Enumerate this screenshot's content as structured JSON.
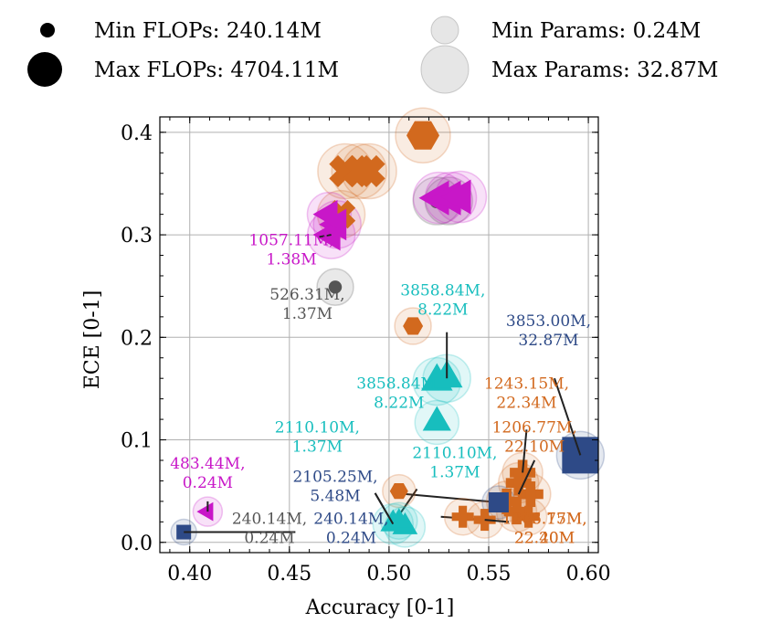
{
  "chart_data": {
    "type": "scatter",
    "title": "",
    "xlabel": "Accuracy [0-1]",
    "ylabel": "ECE [0-1]",
    "xlim": [
      0.385,
      0.605
    ],
    "ylim": [
      -0.01,
      0.415
    ],
    "xticks": [
      0.4,
      0.45,
      0.5,
      0.55,
      0.6
    ],
    "xtick_labels": [
      "0.40",
      "0.45",
      "0.50",
      "0.55",
      "0.60"
    ],
    "yticks": [
      0.0,
      0.1,
      0.2,
      0.3,
      0.4
    ],
    "ytick_labels": [
      "0.0",
      "0.1",
      "0.2",
      "0.3",
      "0.4"
    ],
    "grid": true,
    "legend": {
      "flops_min": "Min FLOPs: 240.14M",
      "flops_max": "Max FLOPs: 4704.11M",
      "params_min": "Min Params: 0.24M",
      "params_max": "Max Params: 32.87M"
    },
    "colors": {
      "orange": "#d2691e",
      "magenta": "#c817c8",
      "teal": "#17bebe",
      "navy": "#2e4a87",
      "gray": "#555555"
    },
    "points": [
      {
        "x": 0.517,
        "y": 0.397,
        "shape": "hexagon",
        "color": "orange",
        "size": 18,
        "halo": 30
      },
      {
        "x": 0.478,
        "y": 0.362,
        "shape": "x",
        "color": "orange",
        "size": 18,
        "halo": 30
      },
      {
        "x": 0.485,
        "y": 0.362,
        "shape": "x",
        "color": "orange",
        "size": 18,
        "halo": 30
      },
      {
        "x": 0.49,
        "y": 0.362,
        "shape": "x",
        "color": "orange",
        "size": 18,
        "halo": 30
      },
      {
        "x": 0.476,
        "y": 0.32,
        "shape": "x",
        "color": "orange",
        "size": 16,
        "halo": 26
      },
      {
        "x": 0.474,
        "y": 0.31,
        "shape": "tri-left",
        "color": "magenta",
        "size": 20,
        "halo": 26
      },
      {
        "x": 0.471,
        "y": 0.3,
        "shape": "tri-left",
        "color": "magenta",
        "size": 20,
        "halo": 26
      },
      {
        "x": 0.47,
        "y": 0.32,
        "shape": "tri-left",
        "color": "magenta",
        "size": 18,
        "halo": 24
      },
      {
        "x": 0.524,
        "y": 0.333,
        "shape": "circle",
        "color": "gray",
        "size": 10,
        "halo": 26
      },
      {
        "x": 0.53,
        "y": 0.333,
        "shape": "circle",
        "color": "gray",
        "size": 10,
        "halo": 26
      },
      {
        "x": 0.525,
        "y": 0.336,
        "shape": "tri-left",
        "color": "magenta",
        "size": 22,
        "halo": 28
      },
      {
        "x": 0.531,
        "y": 0.336,
        "shape": "tri-left",
        "color": "magenta",
        "size": 22,
        "halo": 28
      },
      {
        "x": 0.536,
        "y": 0.337,
        "shape": "tri-left",
        "color": "magenta",
        "size": 22,
        "halo": 28
      },
      {
        "x": 0.473,
        "y": 0.249,
        "shape": "circle",
        "color": "gray",
        "size": 9,
        "halo": 20
      },
      {
        "x": 0.512,
        "y": 0.211,
        "shape": "hexagon",
        "color": "orange",
        "size": 11,
        "halo": 20
      },
      {
        "x": 0.524,
        "y": 0.157,
        "shape": "triangle",
        "color": "teal",
        "size": 20,
        "halo": 26
      },
      {
        "x": 0.529,
        "y": 0.16,
        "shape": "triangle",
        "color": "teal",
        "size": 20,
        "halo": 26
      },
      {
        "x": 0.524,
        "y": 0.117,
        "shape": "triangle",
        "color": "teal",
        "size": 18,
        "halo": 24
      },
      {
        "x": 0.596,
        "y": 0.085,
        "shape": "square",
        "color": "navy",
        "size": 20,
        "halo": 26
      },
      {
        "x": 0.567,
        "y": 0.068,
        "shape": "plus",
        "color": "orange",
        "size": 14,
        "halo": 22
      },
      {
        "x": 0.565,
        "y": 0.058,
        "shape": "plus",
        "color": "orange",
        "size": 14,
        "halo": 22
      },
      {
        "x": 0.571,
        "y": 0.047,
        "shape": "plus",
        "color": "orange",
        "size": 14,
        "halo": 22
      },
      {
        "x": 0.559,
        "y": 0.04,
        "shape": "plus",
        "color": "orange",
        "size": 14,
        "halo": 22
      },
      {
        "x": 0.564,
        "y": 0.03,
        "shape": "plus",
        "color": "orange",
        "size": 14,
        "halo": 22
      },
      {
        "x": 0.57,
        "y": 0.025,
        "shape": "plus",
        "color": "orange",
        "size": 12,
        "halo": 20
      },
      {
        "x": 0.537,
        "y": 0.025,
        "shape": "plus",
        "color": "orange",
        "size": 12,
        "halo": 20
      },
      {
        "x": 0.548,
        "y": 0.022,
        "shape": "plus",
        "color": "orange",
        "size": 12,
        "halo": 20
      },
      {
        "x": 0.555,
        "y": 0.039,
        "shape": "square",
        "color": "navy",
        "size": 11,
        "halo": 18
      },
      {
        "x": 0.505,
        "y": 0.05,
        "shape": "hexagon",
        "color": "orange",
        "size": 10,
        "halo": 18
      },
      {
        "x": 0.502,
        "y": 0.018,
        "shape": "triangle",
        "color": "teal",
        "size": 16,
        "halo": 22
      },
      {
        "x": 0.508,
        "y": 0.015,
        "shape": "triangle",
        "color": "teal",
        "size": 16,
        "halo": 22
      },
      {
        "x": 0.505,
        "y": 0.021,
        "shape": "triangle",
        "color": "teal",
        "size": 14,
        "halo": 20
      },
      {
        "x": 0.409,
        "y": 0.03,
        "shape": "tri-left",
        "color": "magenta",
        "size": 12,
        "halo": 16
      },
      {
        "x": 0.397,
        "y": 0.01,
        "shape": "square",
        "color": "navy",
        "size": 8,
        "halo": 14
      }
    ],
    "annotations": [
      {
        "lines": [
          "1057.11M,",
          "1.38M"
        ],
        "color": "magenta",
        "tx": 0.451,
        "ty": 0.29,
        "px": 0.471,
        "py": 0.3,
        "lx": 0.465,
        "ly": 0.298
      },
      {
        "lines": [
          "526.31M,",
          "1.37M"
        ],
        "color": "gray",
        "tx": 0.459,
        "ty": 0.237,
        "px": 0.473,
        "py": 0.249,
        "lx": null,
        "ly": null
      },
      {
        "lines": [
          "3858.84M,",
          "8.22M"
        ],
        "color": "teal",
        "tx": 0.527,
        "ty": 0.241,
        "px": 0.529,
        "py": 0.16,
        "lx": 0.529,
        "ly": 0.205
      },
      {
        "lines": [
          "3853.00M,",
          "32.87M"
        ],
        "color": "navy",
        "tx": 0.58,
        "ty": 0.211,
        "px": 0.596,
        "py": 0.085,
        "lx": 0.583,
        "ly": 0.16
      },
      {
        "lines": [
          "3858.84M,",
          "8.22M"
        ],
        "color": "teal",
        "tx": 0.505,
        "ty": 0.15,
        "px": null,
        "py": null,
        "lx": null,
        "ly": null
      },
      {
        "lines": [
          "1243.15M,",
          "22.34M"
        ],
        "color": "orange",
        "tx": 0.569,
        "ty": 0.15,
        "px": 0.567,
        "py": 0.068,
        "lx": 0.569,
        "ly": 0.11
      },
      {
        "lines": [
          "1206.77M,",
          "22.10M"
        ],
        "color": "orange",
        "tx": 0.573,
        "ty": 0.107,
        "px": 0.565,
        "py": 0.047,
        "lx": 0.573,
        "ly": 0.08
      },
      {
        "lines": [
          "2110.10M,",
          "1.37M"
        ],
        "color": "teal",
        "tx": 0.464,
        "ty": 0.107,
        "px": null,
        "py": null,
        "lx": null,
        "ly": null
      },
      {
        "lines": [
          "2110.10M,",
          "1.37M"
        ],
        "color": "teal",
        "tx": 0.533,
        "ty": 0.082,
        "px": null,
        "py": null,
        "lx": null,
        "ly": null
      },
      {
        "lines": [
          "483.44M,",
          "0.24M"
        ],
        "color": "magenta",
        "tx": 0.409,
        "ty": 0.072,
        "px": 0.409,
        "py": 0.03,
        "lx": 0.409,
        "ly": 0.04
      },
      {
        "lines": [
          "2105.25M,",
          "5.48M"
        ],
        "color": "navy",
        "tx": 0.473,
        "ty": 0.059,
        "px": 0.502,
        "py": 0.018,
        "lx": 0.493,
        "ly": 0.048
      },
      {
        "lines": [
          "240.14M,",
          "0.24M"
        ],
        "color": "gray",
        "tx": 0.44,
        "ty": 0.018,
        "px": 0.397,
        "py": 0.01,
        "lx": 0.453,
        "ly": 0.01
      },
      {
        "lines": [
          "240.14M,",
          "0.24M"
        ],
        "color": "navy",
        "tx": 0.481,
        "ty": 0.018,
        "px": null,
        "py": null,
        "lx": null,
        "ly": null
      },
      {
        "lines": [
          "1206.77M,",
          "22.20M"
        ],
        "color": "orange",
        "tx": 0.578,
        "ty": 0.018,
        "px": 0.548,
        "py": 0.022,
        "lx": 0.56,
        "ly": 0.02
      },
      {
        "lines": [
          "1243.15M,",
          "22.40M"
        ],
        "color": "orange",
        "tx": 0.578,
        "ty": 0.018,
        "px": null,
        "py": null,
        "lx": null,
        "ly": null
      }
    ],
    "connectors": [
      {
        "x1": 0.493,
        "y1": 0.048,
        "x2": 0.502,
        "y2": 0.018
      },
      {
        "x1": 0.502,
        "y1": 0.018,
        "x2": 0.514,
        "y2": 0.052
      },
      {
        "x1": 0.503,
        "y1": 0.048,
        "x2": 0.555,
        "y2": 0.039
      },
      {
        "x1": 0.526,
        "y1": 0.025,
        "x2": 0.548,
        "y2": 0.022
      }
    ]
  }
}
